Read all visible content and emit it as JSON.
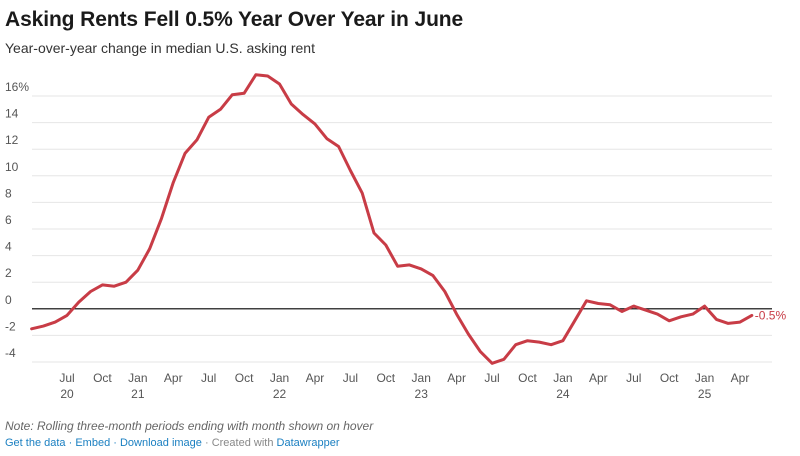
{
  "title": "Asking Rents Fell 0.5% Year Over Year in June",
  "subtitle": "Year-over-year change in median U.S. asking rent",
  "note": "Note: Rolling three-month periods ending with month shown on hover",
  "footer": {
    "get_data": "Get the data",
    "embed": "Embed",
    "download": "Download image",
    "created_with": "Created with",
    "datawrapper": "Datawrapper"
  },
  "colors": {
    "line": "#c83c46",
    "grid": "#e6e6e6",
    "zero": "#000000"
  },
  "chart_data": {
    "type": "line",
    "title": "Asking Rents Fell 0.5% Year Over Year in June",
    "subtitle": "Year-over-year change in median U.S. asking rent",
    "ylim": [
      -4,
      17
    ],
    "yticks": [
      {
        "value": 16,
        "label": "16%"
      },
      {
        "value": 14,
        "label": "14"
      },
      {
        "value": 12,
        "label": "12"
      },
      {
        "value": 10,
        "label": "10"
      },
      {
        "value": 8,
        "label": "8"
      },
      {
        "value": 6,
        "label": "6"
      },
      {
        "value": 4,
        "label": "4"
      },
      {
        "value": 2,
        "label": "2"
      },
      {
        "value": 0,
        "label": "0"
      },
      {
        "value": -2,
        "label": "-2"
      },
      {
        "value": -4,
        "label": "-4"
      }
    ],
    "xticks": [
      {
        "date": "2020-07",
        "label": "Jul",
        "year": "20"
      },
      {
        "date": "2020-10",
        "label": "Oct",
        "year": ""
      },
      {
        "date": "2021-01",
        "label": "Jan",
        "year": "21"
      },
      {
        "date": "2021-04",
        "label": "Apr",
        "year": ""
      },
      {
        "date": "2021-07",
        "label": "Jul",
        "year": ""
      },
      {
        "date": "2021-10",
        "label": "Oct",
        "year": ""
      },
      {
        "date": "2022-01",
        "label": "Jan",
        "year": "22"
      },
      {
        "date": "2022-04",
        "label": "Apr",
        "year": ""
      },
      {
        "date": "2022-07",
        "label": "Jul",
        "year": ""
      },
      {
        "date": "2022-10",
        "label": "Oct",
        "year": ""
      },
      {
        "date": "2023-01",
        "label": "Jan",
        "year": "23"
      },
      {
        "date": "2023-04",
        "label": "Apr",
        "year": ""
      },
      {
        "date": "2023-07",
        "label": "Jul",
        "year": ""
      },
      {
        "date": "2023-10",
        "label": "Oct",
        "year": ""
      },
      {
        "date": "2024-01",
        "label": "Jan",
        "year": "24"
      },
      {
        "date": "2024-04",
        "label": "Apr",
        "year": ""
      },
      {
        "date": "2024-07",
        "label": "Jul",
        "year": ""
      },
      {
        "date": "2024-10",
        "label": "Oct",
        "year": ""
      },
      {
        "date": "2025-01",
        "label": "Jan",
        "year": "25"
      },
      {
        "date": "2025-04",
        "label": "Apr",
        "year": ""
      }
    ],
    "end_label": "-0.5%",
    "series": [
      {
        "values": [
          {
            "x": "2020-04",
            "y": -1.5
          },
          {
            "x": "2020-05",
            "y": -1.3
          },
          {
            "x": "2020-06",
            "y": -1.0
          },
          {
            "x": "2020-07",
            "y": -0.5
          },
          {
            "x": "2020-08",
            "y": 0.5
          },
          {
            "x": "2020-09",
            "y": 1.3
          },
          {
            "x": "2020-10",
            "y": 1.8
          },
          {
            "x": "2020-11",
            "y": 1.7
          },
          {
            "x": "2020-12",
            "y": 2.0
          },
          {
            "x": "2021-01",
            "y": 2.9
          },
          {
            "x": "2021-02",
            "y": 4.5
          },
          {
            "x": "2021-03",
            "y": 6.8
          },
          {
            "x": "2021-04",
            "y": 9.5
          },
          {
            "x": "2021-05",
            "y": 11.7
          },
          {
            "x": "2021-06",
            "y": 12.7
          },
          {
            "x": "2021-07",
            "y": 14.4
          },
          {
            "x": "2021-08",
            "y": 15.0
          },
          {
            "x": "2021-09",
            "y": 16.1
          },
          {
            "x": "2021-10",
            "y": 16.2
          },
          {
            "x": "2021-11",
            "y": 17.6
          },
          {
            "x": "2021-12",
            "y": 17.5
          },
          {
            "x": "2022-01",
            "y": 16.9
          },
          {
            "x": "2022-02",
            "y": 15.4
          },
          {
            "x": "2022-03",
            "y": 14.6
          },
          {
            "x": "2022-04",
            "y": 13.9
          },
          {
            "x": "2022-05",
            "y": 12.8
          },
          {
            "x": "2022-06",
            "y": 12.2
          },
          {
            "x": "2022-07",
            "y": 10.4
          },
          {
            "x": "2022-08",
            "y": 8.7
          },
          {
            "x": "2022-09",
            "y": 5.7
          },
          {
            "x": "2022-10",
            "y": 4.8
          },
          {
            "x": "2022-11",
            "y": 3.2
          },
          {
            "x": "2022-12",
            "y": 3.3
          },
          {
            "x": "2023-01",
            "y": 3.0
          },
          {
            "x": "2023-02",
            "y": 2.5
          },
          {
            "x": "2023-03",
            "y": 1.3
          },
          {
            "x": "2023-04",
            "y": -0.4
          },
          {
            "x": "2023-05",
            "y": -1.9
          },
          {
            "x": "2023-06",
            "y": -3.2
          },
          {
            "x": "2023-07",
            "y": -4.1
          },
          {
            "x": "2023-08",
            "y": -3.8
          },
          {
            "x": "2023-09",
            "y": -2.7
          },
          {
            "x": "2023-10",
            "y": -2.4
          },
          {
            "x": "2023-11",
            "y": -2.5
          },
          {
            "x": "2023-12",
            "y": -2.7
          },
          {
            "x": "2024-01",
            "y": -2.4
          },
          {
            "x": "2024-02",
            "y": -0.9
          },
          {
            "x": "2024-03",
            "y": 0.6
          },
          {
            "x": "2024-04",
            "y": 0.4
          },
          {
            "x": "2024-05",
            "y": 0.3
          },
          {
            "x": "2024-06",
            "y": -0.2
          },
          {
            "x": "2024-07",
            "y": 0.2
          },
          {
            "x": "2024-08",
            "y": -0.1
          },
          {
            "x": "2024-09",
            "y": -0.4
          },
          {
            "x": "2024-10",
            "y": -0.9
          },
          {
            "x": "2024-11",
            "y": -0.6
          },
          {
            "x": "2024-12",
            "y": -0.4
          },
          {
            "x": "2025-01",
            "y": 0.2
          },
          {
            "x": "2025-02",
            "y": -0.8
          },
          {
            "x": "2025-03",
            "y": -1.1
          },
          {
            "x": "2025-04",
            "y": -1.0
          },
          {
            "x": "2025-05",
            "y": -0.5
          }
        ]
      }
    ]
  }
}
